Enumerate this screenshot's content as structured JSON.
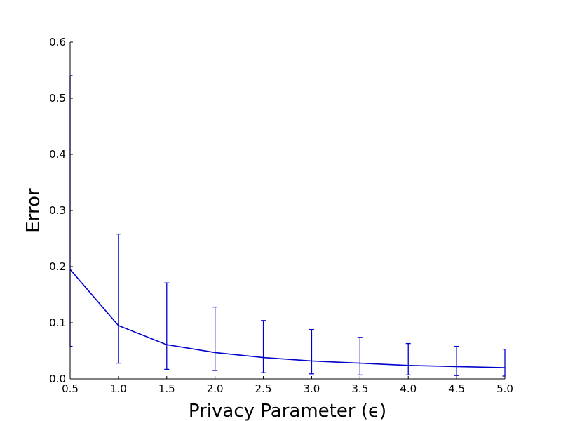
{
  "chart_data": {
    "type": "line",
    "title": "",
    "xlabel": "Privacy Parameter (ϵ)",
    "ylabel": "Error",
    "xlim": [
      0.5,
      5.0
    ],
    "ylim": [
      0.0,
      0.6
    ],
    "xticks": [
      "0.5",
      "1.0",
      "1.5",
      "2.0",
      "2.5",
      "3.0",
      "3.5",
      "4.0",
      "4.5",
      "5.0"
    ],
    "yticks": [
      "0.0",
      "0.1",
      "0.2",
      "0.3",
      "0.4",
      "0.5",
      "0.6"
    ],
    "grid": false,
    "series": [
      {
        "x": [
          0.5,
          1.0,
          1.5,
          2.0,
          2.5,
          3.0,
          3.5,
          4.0,
          4.5,
          5.0
        ],
        "y": [
          0.195,
          0.095,
          0.061,
          0.047,
          0.038,
          0.032,
          0.028,
          0.024,
          0.022,
          0.02
        ],
        "err_low": [
          0.058,
          0.028,
          0.017,
          0.015,
          0.011,
          0.009,
          0.007,
          0.007,
          0.006,
          0.005
        ],
        "err_high": [
          0.54,
          0.258,
          0.171,
          0.128,
          0.104,
          0.088,
          0.074,
          0.063,
          0.058,
          0.053
        ]
      }
    ],
    "line_color": "#0000cc"
  }
}
